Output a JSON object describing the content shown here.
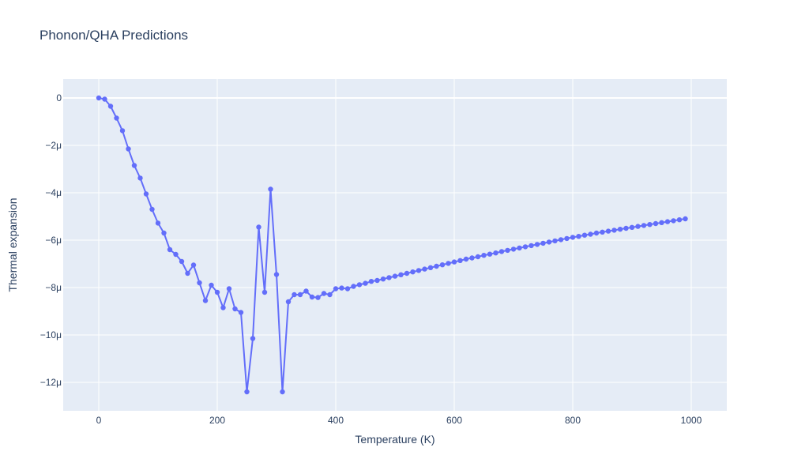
{
  "chart_data": {
    "type": "line",
    "title": "Phonon/QHA Predictions",
    "xlabel": "Temperature (K)",
    "ylabel": "Thermal expansion",
    "xlim": [
      -60,
      1060
    ],
    "ylim": [
      -13.2,
      0.8
    ],
    "x_ticks": [
      0,
      200,
      400,
      600,
      800,
      1000
    ],
    "x_tick_labels": [
      "0",
      "200",
      "400",
      "600",
      "800",
      "1000"
    ],
    "y_ticks": [
      0,
      -2,
      -4,
      -6,
      -8,
      -10,
      -12
    ],
    "y_tick_labels": [
      "0",
      "−2μ",
      "−4μ",
      "−6μ",
      "−8μ",
      "−10μ",
      "−12μ"
    ],
    "y_unit_scale": "1e-6",
    "grid": true,
    "colors": {
      "plot_bg": "#e5ecf6",
      "grid": "#ffffff",
      "series": "#636efa",
      "text": "#2a3f5f"
    },
    "series": [
      {
        "x": [
          0,
          10,
          20,
          30,
          40,
          50,
          60,
          70,
          80,
          90,
          100,
          110,
          120,
          130,
          140,
          150,
          160,
          170,
          180,
          190,
          200,
          210,
          220,
          230,
          240,
          250,
          260,
          270,
          280,
          290,
          300,
          310,
          320,
          330,
          340,
          350,
          360,
          370,
          380,
          390,
          400,
          410,
          420,
          430,
          440,
          450,
          460,
          470,
          480,
          490,
          500,
          510,
          520,
          530,
          540,
          550,
          560,
          570,
          580,
          590,
          600,
          610,
          620,
          630,
          640,
          650,
          660,
          670,
          680,
          690,
          700,
          710,
          720,
          730,
          740,
          750,
          760,
          770,
          780,
          790,
          800,
          810,
          820,
          830,
          840,
          850,
          860,
          870,
          880,
          890,
          900,
          910,
          920,
          930,
          940,
          950,
          960,
          970,
          980,
          990
        ],
        "values": [
          0,
          -0.05,
          -0.35,
          -0.85,
          -1.38,
          -2.15,
          -2.85,
          -3.38,
          -4.05,
          -4.7,
          -5.28,
          -5.7,
          -6.4,
          -6.6,
          -6.9,
          -7.4,
          -7.05,
          -7.8,
          -8.55,
          -7.9,
          -8.2,
          -8.85,
          -8.05,
          -8.9,
          -9.05,
          -12.4,
          -10.15,
          -5.45,
          -8.2,
          -3.85,
          -7.45,
          -12.4,
          -8.6,
          -8.3,
          -8.3,
          -8.15,
          -8.4,
          -8.42,
          -8.25,
          -8.3,
          -8.05,
          -8.02,
          -8.05,
          -7.95,
          -7.88,
          -7.82,
          -7.74,
          -7.7,
          -7.64,
          -7.58,
          -7.52,
          -7.46,
          -7.4,
          -7.34,
          -7.28,
          -7.22,
          -7.16,
          -7.1,
          -7.04,
          -6.98,
          -6.92,
          -6.86,
          -6.8,
          -6.75,
          -6.7,
          -6.64,
          -6.59,
          -6.54,
          -6.48,
          -6.43,
          -6.38,
          -6.33,
          -6.28,
          -6.23,
          -6.18,
          -6.13,
          -6.08,
          -6.03,
          -5.98,
          -5.93,
          -5.88,
          -5.84,
          -5.79,
          -5.75,
          -5.7,
          -5.66,
          -5.62,
          -5.58,
          -5.54,
          -5.5,
          -5.46,
          -5.42,
          -5.38,
          -5.34,
          -5.3,
          -5.26,
          -5.22,
          -5.18,
          -5.14,
          -5.1
        ]
      }
    ]
  }
}
